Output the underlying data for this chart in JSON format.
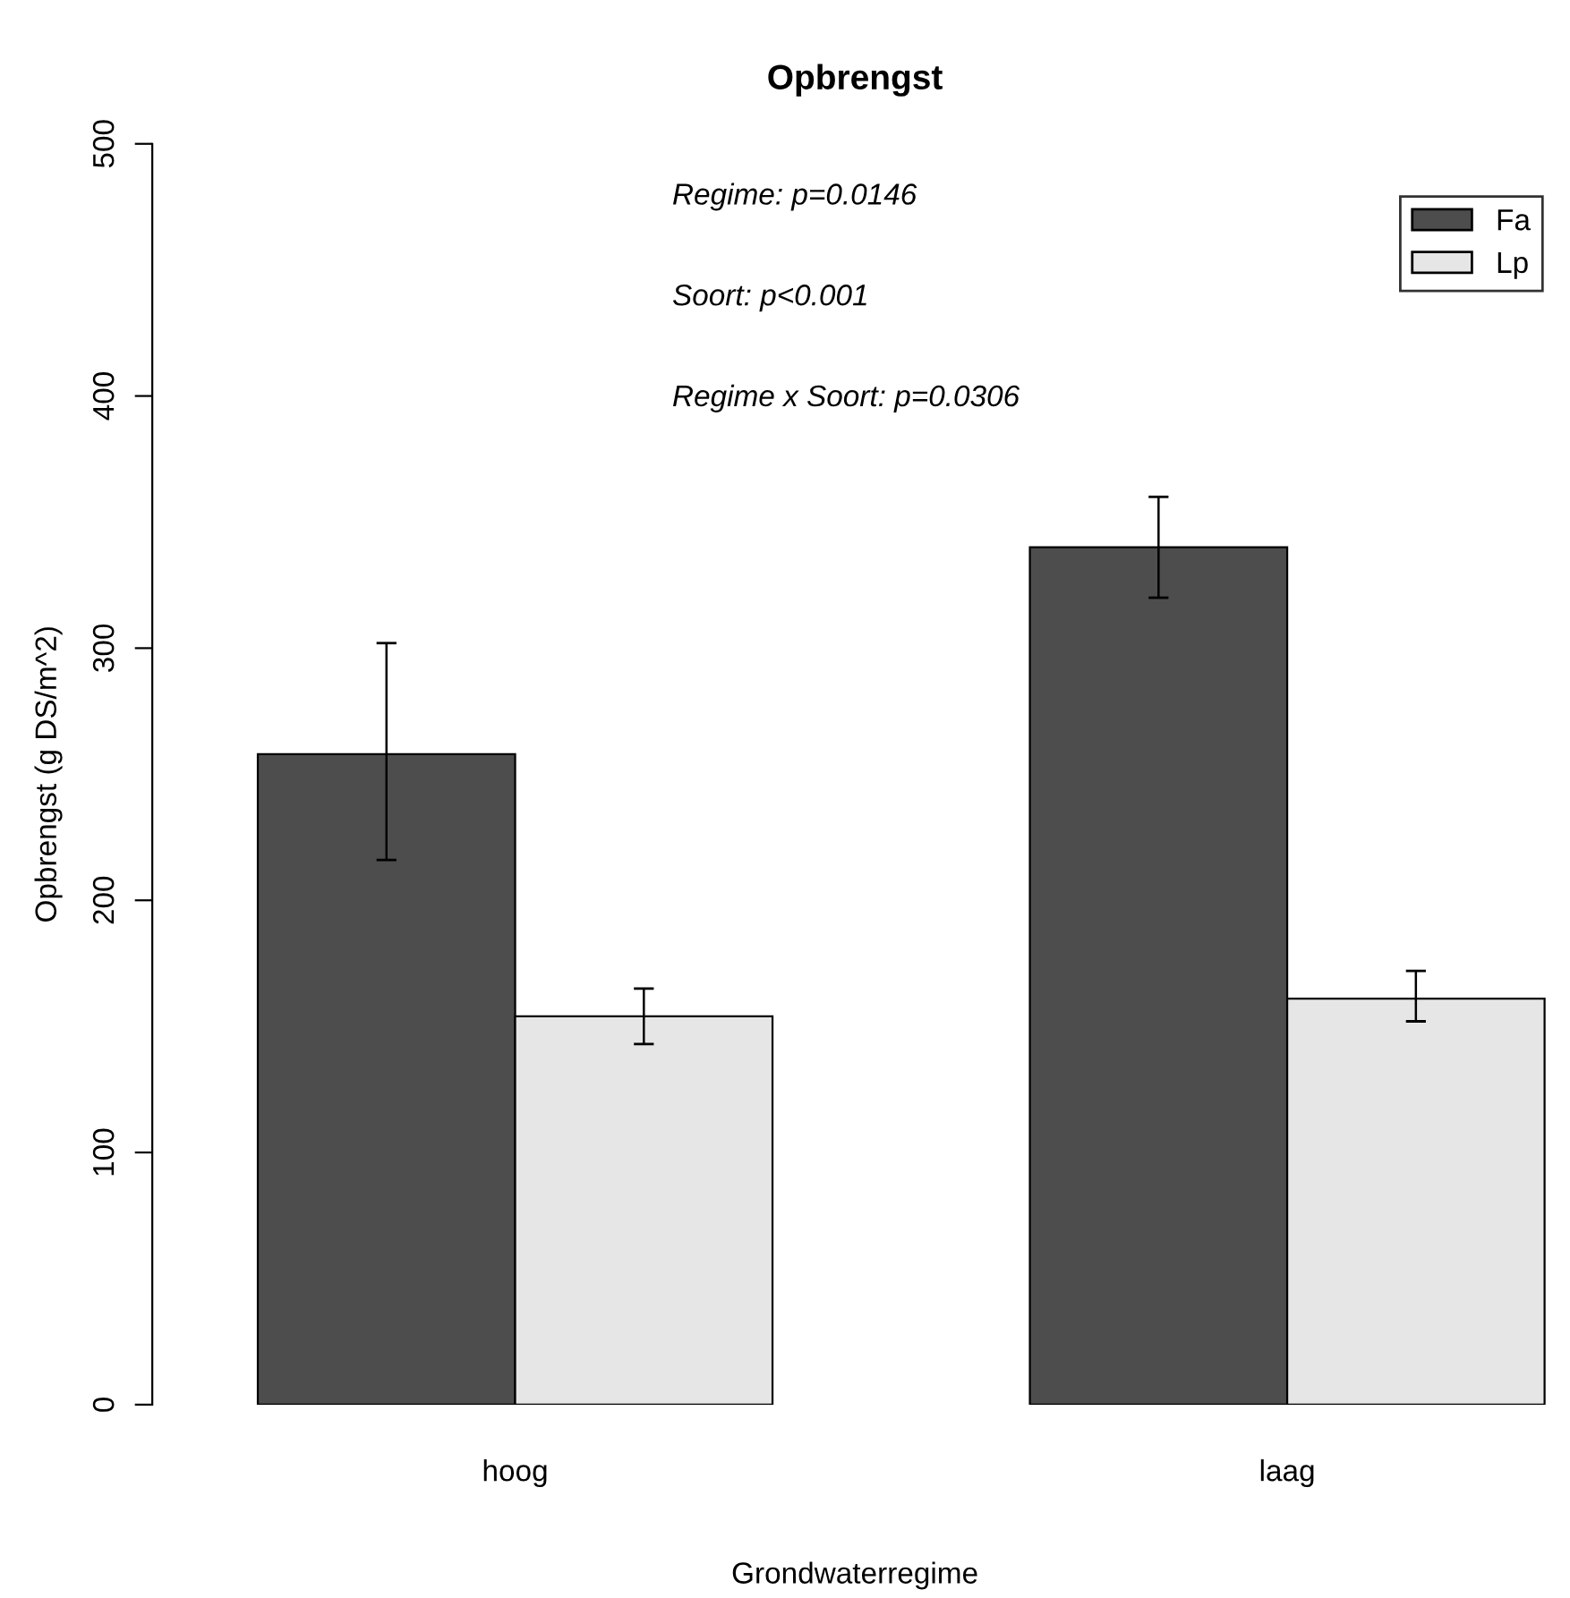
{
  "chart_data": {
    "type": "bar",
    "title": "Opbrengst",
    "xlabel": "Grondwaterregime",
    "ylabel": "Opbrengst (g DS/m^2)",
    "categories": [
      "hoog",
      "laag"
    ],
    "series": [
      {
        "name": "Fa",
        "color": "#4d4d4d",
        "values": [
          258,
          340
        ],
        "errors": [
          [
            216,
            302
          ],
          [
            320,
            360
          ]
        ]
      },
      {
        "name": "Lp",
        "color": "#e6e6e6",
        "values": [
          154,
          161
        ],
        "errors": [
          [
            143,
            165
          ],
          [
            152,
            172
          ]
        ]
      }
    ],
    "ylim": [
      0,
      500
    ],
    "yticks": [
      0,
      100,
      200,
      300,
      400,
      500
    ],
    "grid": false,
    "legend": "top right",
    "annotations": [
      "Regime: p=0.0146",
      "Soort: p<0.001",
      "Regime x Soort: p=0.0306"
    ]
  }
}
